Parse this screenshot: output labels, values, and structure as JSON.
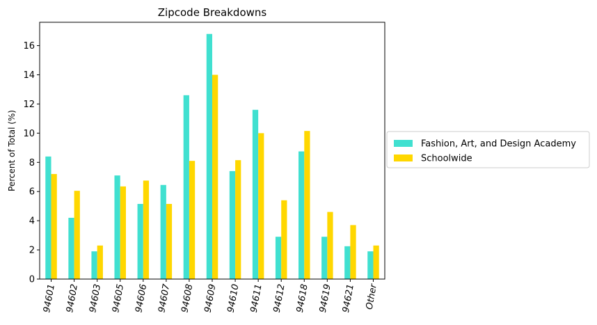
{
  "chart_data": {
    "type": "bar",
    "title": "Zipcode Breakdowns",
    "xlabel": "",
    "ylabel": "Percent of Total (%)",
    "ylim": [
      0,
      17.6
    ],
    "yticks": [
      0,
      2,
      4,
      6,
      8,
      10,
      12,
      14,
      16
    ],
    "grid": false,
    "legend_position": "center-right-outside",
    "categories": [
      "94601",
      "94602",
      "94603",
      "94605",
      "94606",
      "94607",
      "94608",
      "94609",
      "94610",
      "94611",
      "94612",
      "94618",
      "94619",
      "94621",
      "Other"
    ],
    "series": [
      {
        "name": "Fashion, Art, and Design Academy",
        "color": "#40e0d0",
        "values": [
          8.4,
          4.2,
          1.9,
          7.1,
          5.15,
          6.45,
          12.6,
          16.8,
          7.4,
          11.6,
          2.9,
          8.75,
          2.9,
          2.25,
          1.9
        ]
      },
      {
        "name": "Schoolwide",
        "color": "#ffd700",
        "values": [
          7.2,
          6.05,
          2.3,
          6.35,
          6.75,
          5.15,
          8.1,
          14.0,
          8.15,
          10.0,
          5.4,
          10.15,
          4.6,
          3.7,
          2.3
        ]
      }
    ]
  }
}
